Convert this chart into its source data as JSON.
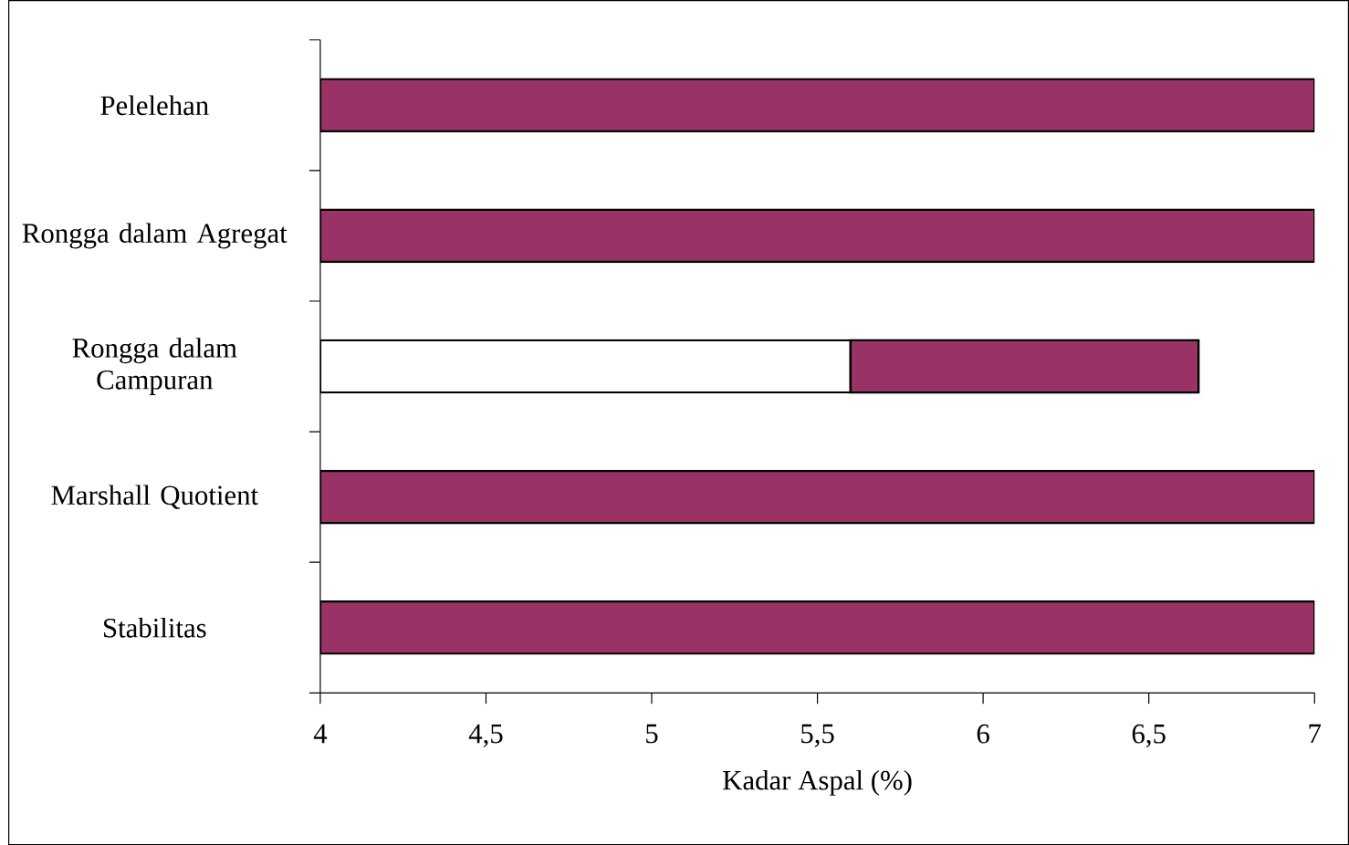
{
  "chart_data": {
    "type": "bar",
    "orientation": "horizontal",
    "xlabel": "Kadar Aspal (%)",
    "categories": [
      "Pelelehan",
      "Rongga dalam Agregat",
      "Rongga dalam Campuran",
      "Marshall Quotient",
      "Stabilitas"
    ],
    "series": [
      {
        "color": "#ffffff",
        "base": [
          null,
          null,
          4,
          null,
          null
        ],
        "values": [
          null,
          null,
          1.6,
          null,
          null
        ]
      },
      {
        "color": "#993366",
        "base": [
          4,
          4,
          5.6,
          4,
          4
        ],
        "values": [
          3,
          3,
          1.05,
          3,
          3
        ]
      }
    ],
    "xlim": [
      4,
      7
    ],
    "xticks": [
      4,
      {
        "value": 4.5,
        "label": "4,5"
      },
      5,
      {
        "value": 5.5,
        "label": "5,5"
      },
      6,
      {
        "value": 6.5,
        "label": "6,5"
      },
      7
    ],
    "grid": false
  }
}
